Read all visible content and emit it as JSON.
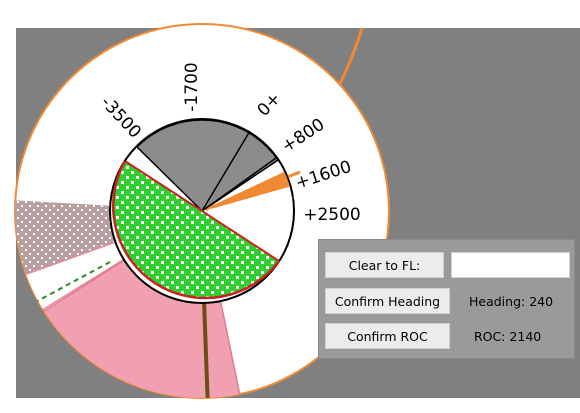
{
  "dial": {
    "roc_labels": [
      "-3500",
      "-1700",
      "0+",
      "+800",
      "+1600",
      "+2500"
    ]
  },
  "controls": {
    "clear_to_fl_label": "Clear to FL:",
    "fl_input_value": "",
    "confirm_heading_label": "Confirm Heading",
    "heading_readout": "Heading: 240",
    "confirm_roc_label": "Confirm ROC",
    "roc_readout": "ROC: 2140"
  },
  "colors": {
    "background": "#808080",
    "ring_border": "#f08a32",
    "sector_gray": "#8c8c8c",
    "sector_green": "#2fcf2f",
    "sector_pink": "#f0a0b0",
    "sector_brown": "#b8a0a0",
    "dial_red": "#cc2222"
  }
}
